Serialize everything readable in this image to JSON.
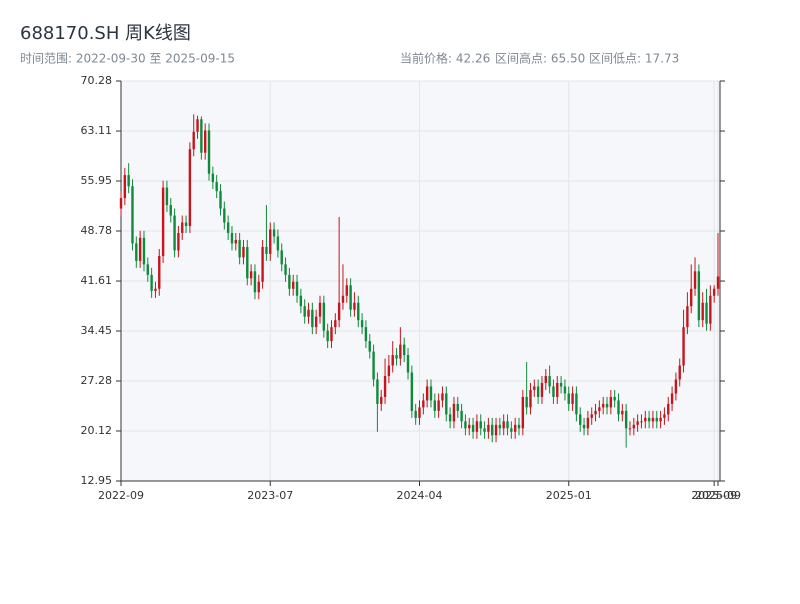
{
  "chart_data": {
    "type": "candlestick",
    "title": "688170.SH 周K线图",
    "subtitle": "时间范围: 2022-09-30 至 2025-09-15",
    "stats": [
      "当前价格: 42.26",
      "区间高点: 65.50",
      "区间低点: 17.73"
    ],
    "up_color": "#c4161c",
    "down_color": "#0e8a3a",
    "grid": true,
    "ylim": [
      12.95,
      70.28
    ],
    "yticks": [
      12.95,
      20.12,
      27.28,
      34.45,
      41.61,
      48.78,
      55.95,
      63.11,
      70.28
    ],
    "xlim": [
      0,
      156
    ],
    "xticks": [
      {
        "value": 0,
        "label": "2022-09"
      },
      {
        "value": 39,
        "label": "2023-07"
      },
      {
        "value": 78,
        "label": "2024-04"
      },
      {
        "value": 117,
        "label": "2025-01"
      },
      {
        "value": 155,
        "label": "2025-09"
      },
      {
        "value": 156,
        "label": "2025-09"
      }
    ],
    "open": [
      52.0,
      53.5,
      56.8,
      55.2,
      47.0,
      44.5,
      47.8,
      44.0,
      42.5,
      40.2,
      40.5,
      45.2,
      55.0,
      52.5,
      51.0,
      46.0,
      48.5,
      50.0,
      49.5,
      60.5,
      63.0,
      64.8,
      60.0,
      63.2,
      57.0,
      55.8,
      54.5,
      52.0,
      50.0,
      48.5,
      47.0,
      47.5,
      45.0,
      46.5,
      42.0,
      43.0,
      40.0,
      41.5,
      46.5,
      45.5,
      49.0,
      48.0,
      46.0,
      44.0,
      42.5,
      40.5,
      41.5,
      39.5,
      38.0,
      36.5,
      37.5,
      35.0,
      36.5,
      38.5,
      34.5,
      33.0,
      35.0,
      36.0,
      38.5,
      39.5,
      41.0,
      37.5,
      38.5,
      36.0,
      35.0,
      33.0,
      31.5,
      27.5,
      24.0,
      25.0,
      28.0,
      29.5,
      31.0,
      30.5,
      32.5,
      31.0,
      28.5,
      23.0,
      22.0,
      23.5,
      24.5,
      26.5,
      24.5,
      23.0,
      24.5,
      25.5,
      22.5,
      21.5,
      24.0,
      23.0,
      21.5,
      20.5,
      21.0,
      20.0,
      21.5,
      20.5,
      20.0,
      21.0,
      19.5,
      21.0,
      20.5,
      21.5,
      20.5,
      20.0,
      21.0,
      20.5,
      25.0,
      23.5,
      26.0,
      26.5,
      25.0,
      27.0,
      28.0,
      26.5,
      25.0,
      27.0,
      26.5,
      25.5,
      24.0,
      25.5,
      22.5,
      21.0,
      20.5,
      22.0,
      22.5,
      23.0,
      23.5,
      24.0,
      23.5,
      25.0,
      24.5,
      22.5,
      23.0,
      20.5,
      20.5,
      21.0,
      21.5,
      21.5,
      22.0,
      21.5,
      22.0,
      21.5,
      22.0,
      22.5,
      24.0,
      25.5,
      27.5,
      29.5,
      35.0,
      38.0,
      40.5,
      43.0,
      36.0,
      38.5,
      35.5,
      39.5,
      40.5
    ],
    "high": [
      54.5,
      57.8,
      58.5,
      56.2,
      48.0,
      48.8,
      48.8,
      45.0,
      43.5,
      41.5,
      46.2,
      56.0,
      56.0,
      53.5,
      52.0,
      49.5,
      51.0,
      51.0,
      61.5,
      65.5,
      65.3,
      65.2,
      64.2,
      64.2,
      58.0,
      56.8,
      55.5,
      53.0,
      51.0,
      49.5,
      48.5,
      48.5,
      47.5,
      47.5,
      44.0,
      44.0,
      42.5,
      47.5,
      52.5,
      50.0,
      50.0,
      49.0,
      47.0,
      45.0,
      43.5,
      42.5,
      42.5,
      40.5,
      39.0,
      38.5,
      38.5,
      37.5,
      39.5,
      39.5,
      35.5,
      36.0,
      37.0,
      50.8,
      44.0,
      42.0,
      42.0,
      40.0,
      39.5,
      37.0,
      36.0,
      34.0,
      32.5,
      28.5,
      26.0,
      30.5,
      31.0,
      33.0,
      32.0,
      35.0,
      33.5,
      32.0,
      29.5,
      24.0,
      24.5,
      25.5,
      27.5,
      27.5,
      25.5,
      25.5,
      26.5,
      26.5,
      23.5,
      25.0,
      25.0,
      24.0,
      22.5,
      22.0,
      22.0,
      22.5,
      22.5,
      21.5,
      22.0,
      22.0,
      22.0,
      22.0,
      22.5,
      22.5,
      21.5,
      22.0,
      22.0,
      26.0,
      30.0,
      27.0,
      27.5,
      27.5,
      28.0,
      29.0,
      29.5,
      27.5,
      28.0,
      28.0,
      27.5,
      26.5,
      26.5,
      26.5,
      23.5,
      22.0,
      23.0,
      23.5,
      24.0,
      24.5,
      25.0,
      25.0,
      26.0,
      26.0,
      25.5,
      24.0,
      24.0,
      21.5,
      22.0,
      22.5,
      22.5,
      23.0,
      23.0,
      23.0,
      23.0,
      23.0,
      23.5,
      25.0,
      26.5,
      28.5,
      30.5,
      37.5,
      40.0,
      44.0,
      45.0,
      44.0,
      40.0,
      40.5,
      41.0,
      41.0,
      48.5
    ],
    "low": [
      51.0,
      52.5,
      54.2,
      46.0,
      43.5,
      43.5,
      43.0,
      41.5,
      39.2,
      39.2,
      39.5,
      44.2,
      51.5,
      50.0,
      45.0,
      45.0,
      47.5,
      48.5,
      48.5,
      59.5,
      62.0,
      59.0,
      59.0,
      56.0,
      54.8,
      53.5,
      51.0,
      49.0,
      47.5,
      46.0,
      46.0,
      44.0,
      44.0,
      41.0,
      41.0,
      39.0,
      39.0,
      40.5,
      44.5,
      44.5,
      47.0,
      45.0,
      43.0,
      41.5,
      39.5,
      39.5,
      38.5,
      37.0,
      35.5,
      35.5,
      34.0,
      34.0,
      35.5,
      33.5,
      32.0,
      32.0,
      34.0,
      35.0,
      37.5,
      38.5,
      36.5,
      36.5,
      35.0,
      34.0,
      32.0,
      30.5,
      26.5,
      20.0,
      23.0,
      24.0,
      27.0,
      28.5,
      29.5,
      29.5,
      30.0,
      27.5,
      22.0,
      21.0,
      21.0,
      22.5,
      23.5,
      23.5,
      22.0,
      22.0,
      23.5,
      21.5,
      20.5,
      20.5,
      22.0,
      20.5,
      19.5,
      19.5,
      19.0,
      19.0,
      19.5,
      19.0,
      19.0,
      18.5,
      18.5,
      19.5,
      19.5,
      19.5,
      19.0,
      19.0,
      19.5,
      19.5,
      22.5,
      22.5,
      25.0,
      24.0,
      24.0,
      26.0,
      25.5,
      24.0,
      24.0,
      25.5,
      24.5,
      23.0,
      23.0,
      21.5,
      20.0,
      19.5,
      19.5,
      21.0,
      21.5,
      22.0,
      22.5,
      22.5,
      22.5,
      23.5,
      21.5,
      21.5,
      17.73,
      19.5,
      19.5,
      20.0,
      20.5,
      20.5,
      20.5,
      20.5,
      20.5,
      20.5,
      21.0,
      21.5,
      23.0,
      24.5,
      26.5,
      28.5,
      34.0,
      37.0,
      39.5,
      35.0,
      35.0,
      34.5,
      34.5,
      38.5,
      39.5
    ],
    "close": [
      53.5,
      56.8,
      55.2,
      47.0,
      44.5,
      47.8,
      44.0,
      42.5,
      40.2,
      40.5,
      45.2,
      55.0,
      52.5,
      51.0,
      46.0,
      48.5,
      50.0,
      49.5,
      60.5,
      63.0,
      64.8,
      60.0,
      63.2,
      57.0,
      55.8,
      54.5,
      52.0,
      50.0,
      48.5,
      47.0,
      47.5,
      45.0,
      46.5,
      42.0,
      43.0,
      40.0,
      41.5,
      46.5,
      45.5,
      49.0,
      48.0,
      46.0,
      44.0,
      42.5,
      40.5,
      41.5,
      39.5,
      38.0,
      36.5,
      37.5,
      35.0,
      36.5,
      38.5,
      34.5,
      33.0,
      35.0,
      36.0,
      38.5,
      39.5,
      41.0,
      37.5,
      38.5,
      36.0,
      35.0,
      33.0,
      31.5,
      27.5,
      24.0,
      25.0,
      28.0,
      29.5,
      31.0,
      30.5,
      32.5,
      31.0,
      28.5,
      23.0,
      22.0,
      23.5,
      24.5,
      26.5,
      24.5,
      23.0,
      24.5,
      25.5,
      22.5,
      21.5,
      24.0,
      23.0,
      21.5,
      20.5,
      21.0,
      20.0,
      21.5,
      20.5,
      20.0,
      21.0,
      19.5,
      21.0,
      20.5,
      21.5,
      20.5,
      20.0,
      21.0,
      20.5,
      25.0,
      23.5,
      26.0,
      26.5,
      25.0,
      27.0,
      28.0,
      26.5,
      25.0,
      27.0,
      26.5,
      25.5,
      24.0,
      25.5,
      22.5,
      21.0,
      20.5,
      22.0,
      22.5,
      23.0,
      23.5,
      24.0,
      23.5,
      25.0,
      24.5,
      22.5,
      23.0,
      20.5,
      20.5,
      21.0,
      21.5,
      21.5,
      22.0,
      21.5,
      22.0,
      21.5,
      22.0,
      22.5,
      24.0,
      25.5,
      27.5,
      29.5,
      35.0,
      38.0,
      40.5,
      43.0,
      36.0,
      38.5,
      35.5,
      39.5,
      40.5,
      42.26
    ]
  }
}
